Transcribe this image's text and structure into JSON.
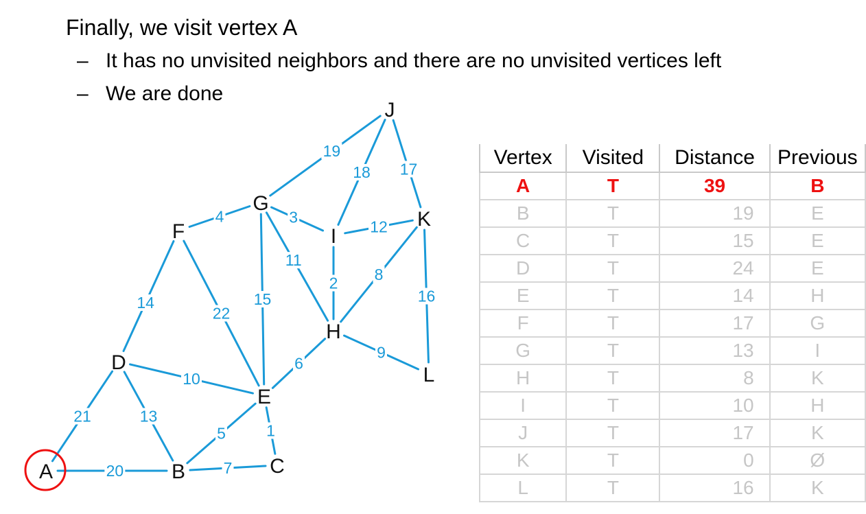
{
  "slide": {
    "heading": "Finally, we visit vertex A",
    "bullets": [
      "It has no unvisited neighbors and there are no unvisited vertices left",
      "We are done"
    ],
    "dash": "–"
  },
  "colors": {
    "edge": "#1a9ad8",
    "highlight": "#ee1111",
    "faded_text": "#c6c6c6",
    "table_border": "#d6d6d6"
  },
  "graph": {
    "current_vertex": "A",
    "vertices": [
      "A",
      "B",
      "C",
      "D",
      "E",
      "F",
      "G",
      "H",
      "I",
      "J",
      "K",
      "L"
    ],
    "edges": [
      {
        "from": "A",
        "to": "B",
        "weight": "20"
      },
      {
        "from": "A",
        "to": "D",
        "weight": "21"
      },
      {
        "from": "B",
        "to": "C",
        "weight": "7"
      },
      {
        "from": "B",
        "to": "D",
        "weight": "13"
      },
      {
        "from": "B",
        "to": "E",
        "weight": "5"
      },
      {
        "from": "C",
        "to": "E",
        "weight": "1"
      },
      {
        "from": "D",
        "to": "E",
        "weight": "10"
      },
      {
        "from": "D",
        "to": "F",
        "weight": "14"
      },
      {
        "from": "E",
        "to": "F",
        "weight": "22"
      },
      {
        "from": "E",
        "to": "G",
        "weight": "15"
      },
      {
        "from": "E",
        "to": "H",
        "weight": "6"
      },
      {
        "from": "F",
        "to": "G",
        "weight": "4"
      },
      {
        "from": "G",
        "to": "H",
        "weight": "11"
      },
      {
        "from": "G",
        "to": "I",
        "weight": "3"
      },
      {
        "from": "G",
        "to": "J",
        "weight": "19"
      },
      {
        "from": "H",
        "to": "I",
        "weight": "2"
      },
      {
        "from": "H",
        "to": "K",
        "weight": "8"
      },
      {
        "from": "H",
        "to": "L",
        "weight": "9"
      },
      {
        "from": "I",
        "to": "J",
        "weight": "18"
      },
      {
        "from": "I",
        "to": "K",
        "weight": "12"
      },
      {
        "from": "J",
        "to": "K",
        "weight": "17"
      },
      {
        "from": "K",
        "to": "L",
        "weight": "16"
      }
    ]
  },
  "table": {
    "headers": [
      "Vertex",
      "Visited",
      "Distance",
      "Previous"
    ],
    "current_row_index": 0,
    "rows": [
      {
        "vertex": "A",
        "visited": "T",
        "distance": "39",
        "previous": "B"
      },
      {
        "vertex": "B",
        "visited": "T",
        "distance": "19",
        "previous": "E"
      },
      {
        "vertex": "C",
        "visited": "T",
        "distance": "15",
        "previous": "E"
      },
      {
        "vertex": "D",
        "visited": "T",
        "distance": "24",
        "previous": "E"
      },
      {
        "vertex": "E",
        "visited": "T",
        "distance": "14",
        "previous": "H"
      },
      {
        "vertex": "F",
        "visited": "T",
        "distance": "17",
        "previous": "G"
      },
      {
        "vertex": "G",
        "visited": "T",
        "distance": "13",
        "previous": "I"
      },
      {
        "vertex": "H",
        "visited": "T",
        "distance": "8",
        "previous": "K"
      },
      {
        "vertex": "I",
        "visited": "T",
        "distance": "10",
        "previous": "H"
      },
      {
        "vertex": "J",
        "visited": "T",
        "distance": "17",
        "previous": "K"
      },
      {
        "vertex": "K",
        "visited": "T",
        "distance": "0",
        "previous": "Ø"
      },
      {
        "vertex": "L",
        "visited": "T",
        "distance": "16",
        "previous": "K"
      }
    ]
  }
}
